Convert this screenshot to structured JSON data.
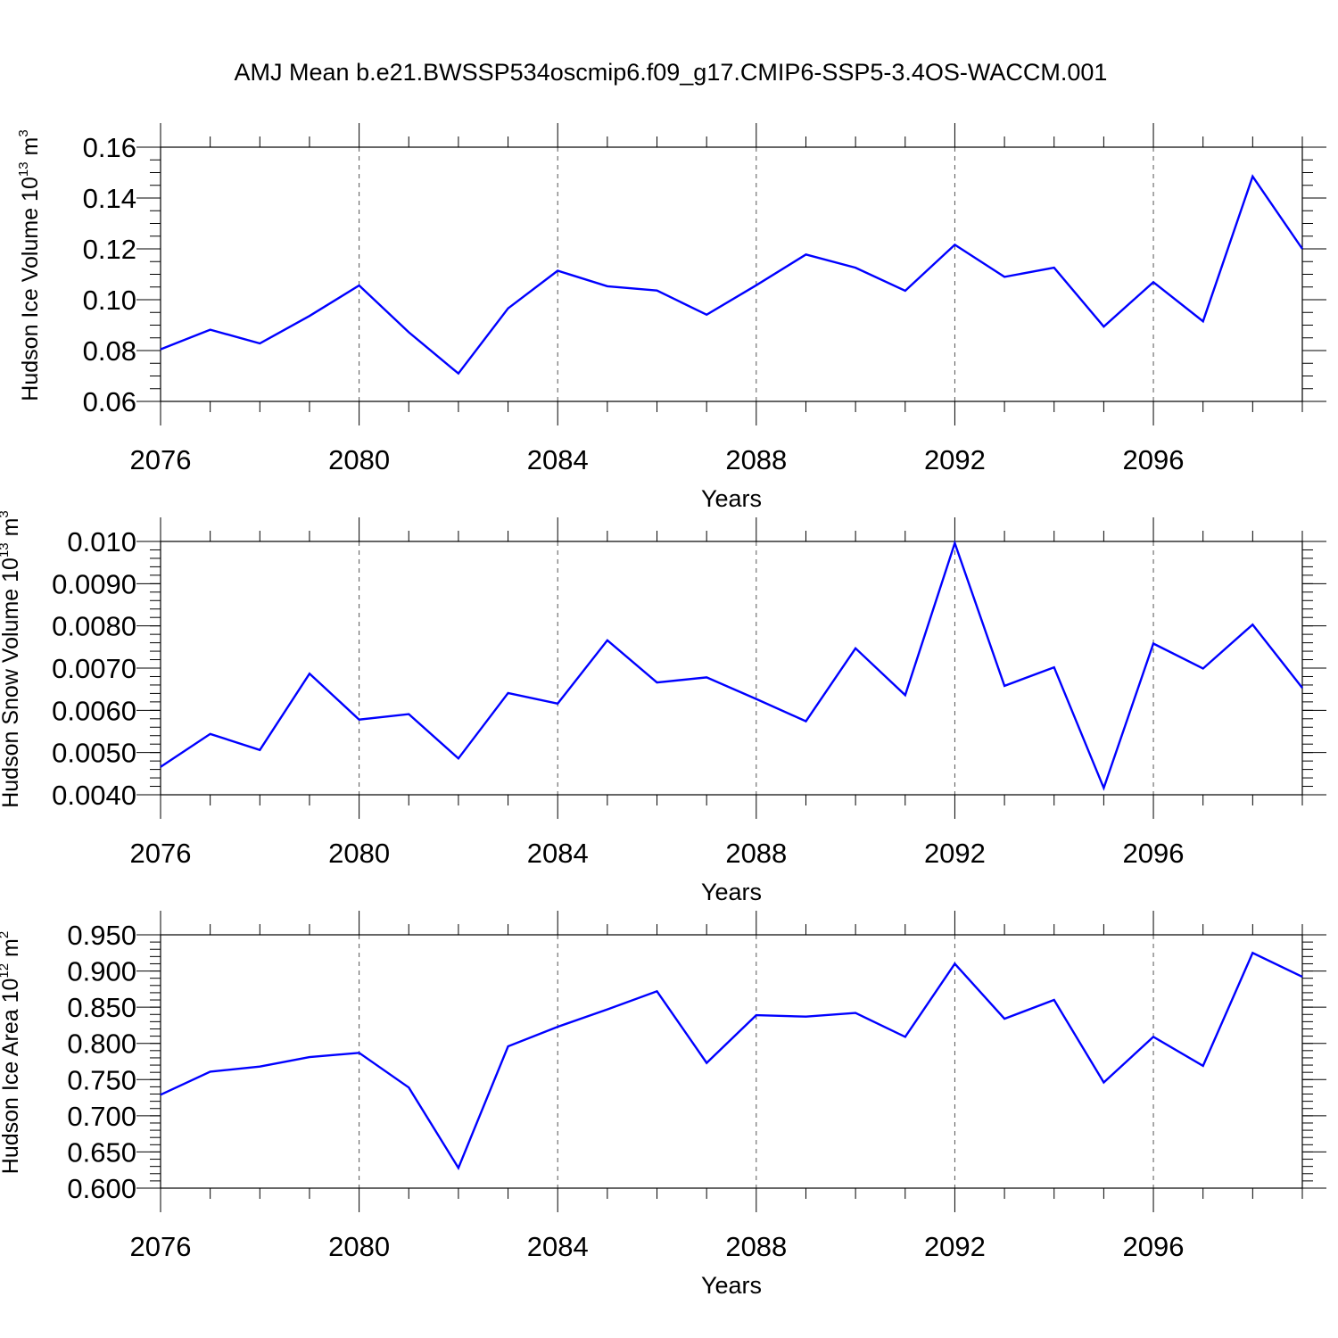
{
  "figure": {
    "title": "AMJ Mean b.e21.BWSSP534oscmip6.f09_g17.CMIP6-SSP5-3.4OS-WACCM.001"
  },
  "chart_data": [
    {
      "type": "line",
      "ylabel": "Hudson Ice Volume 10",
      "ylabel_exp1": "13",
      "ylabel_mid": " m",
      "ylabel_exp2": "3",
      "xlabel": "Years",
      "xlim": [
        2076,
        2099
      ],
      "ylim": [
        0.06,
        0.16
      ],
      "xticks": [
        2076,
        2080,
        2084,
        2088,
        2092,
        2096
      ],
      "xtick_labels": [
        "2076",
        "2080",
        "2084",
        "2088",
        "2092",
        "2096"
      ],
      "yticks": [
        0.06,
        0.08,
        0.1,
        0.12,
        0.14,
        0.16
      ],
      "ytick_labels": [
        "0.06",
        "0.08",
        "0.10",
        "0.12",
        "0.14",
        "0.16"
      ],
      "minor_ystep": 0.005,
      "grid": "vertical dashed at major x ticks",
      "x": [
        2076,
        2077,
        2078,
        2079,
        2080,
        2081,
        2082,
        2083,
        2084,
        2085,
        2086,
        2087,
        2088,
        2089,
        2090,
        2091,
        2092,
        2093,
        2094,
        2095,
        2096,
        2097,
        2098,
        2099
      ],
      "series": [
        {
          "color": "#0000ff",
          "values": [
            0.0805,
            0.0882,
            0.0828,
            0.0936,
            0.1056,
            0.0872,
            0.071,
            0.0966,
            0.1114,
            0.1053,
            0.1036,
            0.0941,
            0.1057,
            0.1178,
            0.1126,
            0.1035,
            0.1216,
            0.109,
            0.1126,
            0.0894,
            0.1069,
            0.0915,
            0.1485,
            0.12
          ]
        }
      ]
    },
    {
      "type": "line",
      "ylabel": "Hudson Snow Volume 10",
      "ylabel_exp1": "13",
      "ylabel_mid": " m",
      "ylabel_exp2": "3",
      "xlabel": "Years",
      "xlim": [
        2076,
        2099
      ],
      "ylim": [
        0.004,
        0.01
      ],
      "xticks": [
        2076,
        2080,
        2084,
        2088,
        2092,
        2096
      ],
      "xtick_labels": [
        "2076",
        "2080",
        "2084",
        "2088",
        "2092",
        "2096"
      ],
      "yticks": [
        0.004,
        0.005,
        0.006,
        0.007,
        0.008,
        0.009,
        0.01
      ],
      "ytick_labels": [
        "0.0040",
        "0.0050",
        "0.0060",
        "0.0070",
        "0.0080",
        "0.0090",
        "0.010"
      ],
      "minor_ystep": 0.0002,
      "grid": "vertical dashed at major x ticks",
      "x": [
        2076,
        2077,
        2078,
        2079,
        2080,
        2081,
        2082,
        2083,
        2084,
        2085,
        2086,
        2087,
        2088,
        2089,
        2090,
        2091,
        2092,
        2093,
        2094,
        2095,
        2096,
        2097,
        2098,
        2099
      ],
      "series": [
        {
          "color": "#0000ff",
          "values": [
            0.00466,
            0.00544,
            0.00506,
            0.00687,
            0.00578,
            0.00591,
            0.00486,
            0.00641,
            0.00616,
            0.00766,
            0.00666,
            0.00678,
            0.00627,
            0.00574,
            0.00747,
            0.00636,
            0.00996,
            0.00658,
            0.00702,
            0.00416,
            0.00758,
            0.00699,
            0.00803,
            0.00653
          ]
        }
      ]
    },
    {
      "type": "line",
      "ylabel": "Hudson Ice Area 10",
      "ylabel_exp1": "12",
      "ylabel_mid": " m",
      "ylabel_exp2": "2",
      "xlabel": "Years",
      "xlim": [
        2076,
        2099
      ],
      "ylim": [
        0.6,
        0.95
      ],
      "xticks": [
        2076,
        2080,
        2084,
        2088,
        2092,
        2096
      ],
      "xtick_labels": [
        "2076",
        "2080",
        "2084",
        "2088",
        "2092",
        "2096"
      ],
      "yticks": [
        0.6,
        0.65,
        0.7,
        0.75,
        0.8,
        0.85,
        0.9,
        0.95
      ],
      "ytick_labels": [
        "0.600",
        "0.650",
        "0.700",
        "0.750",
        "0.800",
        "0.850",
        "0.900",
        "0.950"
      ],
      "minor_ystep": 0.01,
      "grid": "vertical dashed at major x ticks",
      "x": [
        2076,
        2077,
        2078,
        2079,
        2080,
        2081,
        2082,
        2083,
        2084,
        2085,
        2086,
        2087,
        2088,
        2089,
        2090,
        2091,
        2092,
        2093,
        2094,
        2095,
        2096,
        2097,
        2098,
        2099
      ],
      "series": [
        {
          "color": "#0000ff",
          "values": [
            0.729,
            0.761,
            0.768,
            0.781,
            0.787,
            0.739,
            0.628,
            0.796,
            0.823,
            0.847,
            0.872,
            0.773,
            0.839,
            0.837,
            0.842,
            0.809,
            0.91,
            0.834,
            0.86,
            0.746,
            0.809,
            0.769,
            0.925,
            0.892
          ]
        }
      ]
    }
  ]
}
